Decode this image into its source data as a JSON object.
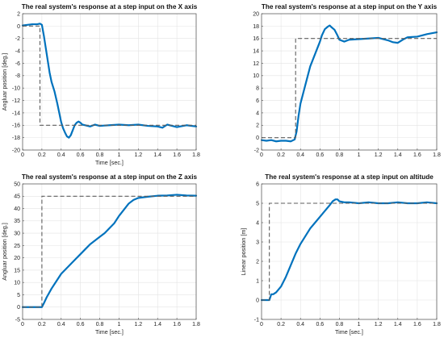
{
  "chart_data": [
    {
      "type": "line",
      "title": "The real system's response at a step input on the X axis",
      "xlabel": "Time [sec.]",
      "ylabel": "Angluar position [deg.]",
      "xlim": [
        0,
        1.8
      ],
      "ylim": [
        -20,
        2
      ],
      "xticks": [
        0,
        0.2,
        0.4,
        0.6,
        0.8,
        1,
        1.2,
        1.4,
        1.6,
        1.8
      ],
      "yticks": [
        -20,
        -18,
        -16,
        -14,
        -12,
        -10,
        -8,
        -6,
        -4,
        -2,
        0,
        2
      ],
      "grid": true,
      "colors": {
        "response": "#0072bd",
        "reference": "#5e5e5e"
      },
      "series": [
        {
          "style": "solid",
          "x": [
            0,
            0.05,
            0.1,
            0.15,
            0.18,
            0.2,
            0.22,
            0.25,
            0.28,
            0.3,
            0.33,
            0.36,
            0.38,
            0.4,
            0.42,
            0.44,
            0.46,
            0.48,
            0.5,
            0.52,
            0.54,
            0.56,
            0.58,
            0.6,
            0.62,
            0.65,
            0.7,
            0.75,
            0.8,
            0.9,
            1.0,
            1.1,
            1.2,
            1.3,
            1.4,
            1.45,
            1.5,
            1.55,
            1.6,
            1.7,
            1.8
          ],
          "y": [
            0.1,
            0.2,
            0.3,
            0.3,
            0.4,
            0.2,
            -1.5,
            -4.5,
            -7.5,
            -9.0,
            -10.5,
            -12.5,
            -14.0,
            -15.5,
            -16.5,
            -17.2,
            -17.8,
            -18.0,
            -17.6,
            -16.8,
            -16.0,
            -15.6,
            -15.4,
            -15.6,
            -15.9,
            -16.0,
            -16.2,
            -15.9,
            -16.1,
            -16.0,
            -15.9,
            -16.0,
            -15.9,
            -16.1,
            -16.2,
            -16.4,
            -15.9,
            -16.1,
            -16.3,
            -16.0,
            -16.2
          ]
        },
        {
          "style": "dashed",
          "x": [
            0,
            0.18,
            0.18,
            1.8
          ],
          "y": [
            0,
            0,
            -16,
            -16
          ]
        }
      ]
    },
    {
      "type": "line",
      "title": "The real system's response at a step input on the Y axis",
      "xlabel": "",
      "ylabel": "",
      "xlim": [
        0,
        1.8
      ],
      "ylim": [
        -2,
        20
      ],
      "xticks": [
        0,
        0.2,
        0.4,
        0.6,
        0.8,
        1,
        1.2,
        1.4,
        1.6,
        1.8
      ],
      "yticks": [
        -2,
        0,
        2,
        4,
        6,
        8,
        10,
        12,
        14,
        16,
        18,
        20
      ],
      "grid": true,
      "colors": {
        "response": "#0072bd",
        "reference": "#5e5e5e"
      },
      "series": [
        {
          "style": "solid",
          "x": [
            0,
            0.05,
            0.1,
            0.15,
            0.2,
            0.25,
            0.3,
            0.34,
            0.36,
            0.38,
            0.4,
            0.45,
            0.5,
            0.55,
            0.6,
            0.62,
            0.65,
            0.68,
            0.7,
            0.72,
            0.75,
            0.78,
            0.8,
            0.85,
            0.9,
            1.0,
            1.1,
            1.2,
            1.3,
            1.35,
            1.4,
            1.45,
            1.5,
            1.6,
            1.7,
            1.8
          ],
          "y": [
            -0.4,
            -0.5,
            -0.4,
            -0.6,
            -0.5,
            -0.5,
            -0.6,
            -0.3,
            1.0,
            3.5,
            5.5,
            8.5,
            11.5,
            13.5,
            15.5,
            16.5,
            17.5,
            17.9,
            18.1,
            17.8,
            17.4,
            16.5,
            15.8,
            15.5,
            15.8,
            15.9,
            16.0,
            16.1,
            15.7,
            15.4,
            15.3,
            15.8,
            16.2,
            16.3,
            16.7,
            17.0
          ]
        },
        {
          "style": "dashed",
          "x": [
            0,
            0.35,
            0.35,
            1.8
          ],
          "y": [
            0,
            0,
            16,
            16
          ]
        }
      ]
    },
    {
      "type": "line",
      "title": "The real system's response at a step input on the Z axis",
      "xlabel": "Time [sec.]",
      "ylabel": "Angluar position [deg.]",
      "xlim": [
        0,
        1.8
      ],
      "ylim": [
        -5,
        50
      ],
      "xticks": [
        0,
        0.2,
        0.4,
        0.6,
        0.8,
        1,
        1.2,
        1.4,
        1.6,
        1.8
      ],
      "yticks": [
        -5,
        0,
        5,
        10,
        15,
        20,
        25,
        30,
        35,
        40,
        45,
        50
      ],
      "grid": true,
      "colors": {
        "response": "#0072bd",
        "reference": "#5e5e5e"
      },
      "series": [
        {
          "style": "solid",
          "x": [
            0,
            0.1,
            0.2,
            0.22,
            0.25,
            0.3,
            0.35,
            0.4,
            0.45,
            0.5,
            0.55,
            0.6,
            0.65,
            0.7,
            0.75,
            0.8,
            0.85,
            0.9,
            0.95,
            1.0,
            1.05,
            1.1,
            1.15,
            1.2,
            1.3,
            1.4,
            1.5,
            1.6,
            1.7,
            1.8
          ],
          "y": [
            0,
            0,
            0,
            1.5,
            4,
            7.5,
            10.5,
            13.5,
            15.5,
            17.5,
            19.5,
            21.5,
            23.5,
            25.5,
            27,
            28.5,
            30,
            32,
            34,
            37,
            39.5,
            42,
            43.5,
            44.3,
            44.8,
            45.2,
            45.3,
            45.6,
            45.3,
            45.2
          ]
        },
        {
          "style": "dashed",
          "x": [
            0,
            0.2,
            0.2,
            1.8
          ],
          "y": [
            0,
            0,
            45,
            45
          ]
        }
      ]
    },
    {
      "type": "line",
      "title": "The real system's response at a step input on altitude",
      "xlabel": "Time [sec.]",
      "ylabel": "Linear position [m]",
      "xlim": [
        0,
        1.8
      ],
      "ylim": [
        -1,
        6
      ],
      "xticks": [
        0,
        0.2,
        0.4,
        0.6,
        0.8,
        1,
        1.2,
        1.4,
        1.6,
        1.8
      ],
      "yticks": [
        -1,
        0,
        1,
        2,
        3,
        4,
        5,
        6
      ],
      "grid": true,
      "colors": {
        "response": "#0072bd",
        "reference": "#5e5e5e"
      },
      "series": [
        {
          "style": "solid",
          "x": [
            0,
            0.05,
            0.08,
            0.1,
            0.12,
            0.15,
            0.2,
            0.25,
            0.3,
            0.35,
            0.4,
            0.45,
            0.5,
            0.55,
            0.6,
            0.65,
            0.7,
            0.73,
            0.76,
            0.78,
            0.8,
            0.85,
            0.9,
            1.0,
            1.1,
            1.2,
            1.3,
            1.4,
            1.5,
            1.6,
            1.7,
            1.8
          ],
          "y": [
            0,
            0,
            0,
            0.3,
            0.3,
            0.4,
            0.7,
            1.2,
            1.8,
            2.4,
            2.9,
            3.3,
            3.7,
            4.0,
            4.3,
            4.6,
            4.9,
            5.1,
            5.2,
            5.2,
            5.1,
            5.05,
            5.05,
            5.0,
            5.05,
            5.0,
            5.0,
            5.05,
            5.0,
            5.0,
            5.05,
            5.0
          ]
        },
        {
          "style": "dashed",
          "x": [
            0,
            0.08,
            0.08,
            1.8
          ],
          "y": [
            0,
            0,
            5,
            5
          ]
        }
      ]
    }
  ]
}
